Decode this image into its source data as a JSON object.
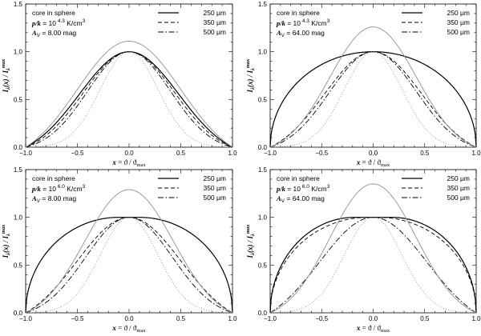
{
  "chart_data": [
    {
      "type": "line",
      "panel": "top-left",
      "title": "core in sphere",
      "pressure_text": "p/k = 10^4.3 K/cm^3",
      "pressure_exp": "4.3",
      "av_text": "A_V = 8.00 mag",
      "av_value": "8.00",
      "xlabel": "x = ϑ / ϑ_max",
      "ylabel": "I_λ(x) / I_λ^max",
      "xlim": [
        -1.0,
        1.0
      ],
      "ylim": [
        0.0,
        1.5
      ],
      "xticks": [
        "-1.0",
        "-0.5",
        "0.0",
        "0.5",
        "1.0"
      ],
      "yticks": [
        "0.0",
        "0.5",
        "1.0",
        "1.5"
      ],
      "legend_position": "top-right",
      "series": [
        {
          "name": "250 μm",
          "style": "solid",
          "peak": 1.0,
          "flat": 0.0,
          "sigma": 0.48,
          "edge": 0.0
        },
        {
          "name": "350 μm",
          "style": "dashed",
          "peak": 1.0,
          "flat": 0.0,
          "sigma": 0.44,
          "edge": 0.0
        },
        {
          "name": "500 μm",
          "style": "dashdot",
          "peak": 1.0,
          "flat": 0.0,
          "sigma": 0.4,
          "edge": 0.0
        },
        {
          "name": "thin reference",
          "style": "thin-solid",
          "peak": 1.11,
          "flat": 0.0,
          "sigma": 0.5,
          "edge": 0.0
        },
        {
          "name": "dotted reference",
          "style": "dotted",
          "peak": 1.0,
          "flat": 0.0,
          "sigma": 0.28,
          "edge": 0.0
        }
      ]
    },
    {
      "type": "line",
      "panel": "top-right",
      "title": "core in sphere",
      "pressure_text": "p/k = 10^4.3 K/cm^3",
      "pressure_exp": "4.3",
      "av_text": "A_V = 64.00 mag",
      "av_value": "64.00",
      "xlabel": "x = ϑ / ϑ_max",
      "ylabel": "I_λ(x) / I_λ^max",
      "xlim": [
        -1.0,
        1.0
      ],
      "ylim": [
        0.0,
        1.5
      ],
      "xticks": [
        "-1.0",
        "-0.5",
        "0.0",
        "0.5",
        "1.0"
      ],
      "yticks": [
        "0.0",
        "0.5",
        "1.0",
        "1.5"
      ],
      "legend_position": "top-right",
      "series": [
        {
          "name": "250 μm",
          "style": "solid",
          "peak": 1.0,
          "flat": 0.0,
          "sigma": 0.0,
          "edge": 0.0
        },
        {
          "name": "350 μm",
          "style": "dashed",
          "peak": 1.0,
          "flat": 0.0,
          "sigma": 0.47,
          "edge": 0.0
        },
        {
          "name": "500 μm",
          "style": "dashdot",
          "peak": 1.0,
          "flat": 0.0,
          "sigma": 0.42,
          "edge": 0.0
        },
        {
          "name": "thin reference",
          "style": "thin-solid",
          "peak": 1.26,
          "flat": 0.0,
          "sigma": 0.42,
          "edge": 0.0
        },
        {
          "name": "dotted reference",
          "style": "dotted",
          "peak": 1.0,
          "flat": 0.0,
          "sigma": 0.28,
          "edge": 0.0
        }
      ]
    },
    {
      "type": "line",
      "panel": "bottom-left",
      "title": "core in sphere",
      "pressure_text": "p/k = 10^6.0 K/cm^3",
      "pressure_exp": "6.0",
      "av_text": "A_V = 8.00 mag",
      "av_value": "8.00",
      "xlabel": "x = ϑ / ϑ_max",
      "ylabel": "I_λ(x) / I_λ^max",
      "xlim": [
        -1.0,
        1.0
      ],
      "ylim": [
        0.0,
        1.5
      ],
      "xticks": [
        "-1.0",
        "-0.5",
        "0.0",
        "0.5",
        "1.0"
      ],
      "yticks": [
        "0.0",
        "0.5",
        "1.0",
        "1.5"
      ],
      "legend_position": "top-right",
      "series": [
        {
          "name": "250 μm",
          "style": "solid",
          "peak": 1.0,
          "flat": 0.1,
          "sigma": 0.0,
          "edge": 0.0
        },
        {
          "name": "350 μm",
          "style": "dashed",
          "peak": 1.0,
          "flat": 0.0,
          "sigma": 0.5,
          "edge": 0.0
        },
        {
          "name": "500 μm",
          "style": "dashdot",
          "peak": 1.0,
          "flat": 0.0,
          "sigma": 0.42,
          "edge": 0.0
        },
        {
          "name": "thin reference",
          "style": "thin-solid",
          "peak": 1.29,
          "flat": 0.0,
          "sigma": 0.43,
          "edge": 0.0
        },
        {
          "name": "dotted reference",
          "style": "dotted",
          "peak": 1.0,
          "flat": 0.0,
          "sigma": 0.28,
          "edge": 0.0
        }
      ]
    },
    {
      "type": "line",
      "panel": "bottom-right",
      "title": "core in sphere",
      "pressure_text": "p/k = 10^6.0 K/cm^3",
      "pressure_exp": "6.0",
      "av_text": "A_V = 64.00 mag",
      "av_value": "64.00",
      "xlabel": "x = ϑ / ϑ_max",
      "ylabel": "I_λ(x) / I_λ^max",
      "xlim": [
        -1.0,
        1.0
      ],
      "ylim": [
        0.0,
        1.5
      ],
      "xticks": [
        "-1.0",
        "-0.5",
        "0.0",
        "0.5",
        "1.0"
      ],
      "yticks": [
        "0.0",
        "0.5",
        "1.0",
        "1.5"
      ],
      "legend_position": "top-right",
      "series": [
        {
          "name": "250 μm",
          "style": "solid",
          "peak": 1.0,
          "flat": 0.18,
          "sigma": 0.0,
          "edge": 0.0
        },
        {
          "name": "350 μm",
          "style": "dashed",
          "peak": 1.0,
          "flat": 0.05,
          "sigma": 0.0,
          "edge": 0.0
        },
        {
          "name": "500 μm",
          "style": "dashdot",
          "peak": 1.0,
          "flat": 0.0,
          "sigma": 0.52,
          "edge": 0.0
        },
        {
          "name": "thin reference",
          "style": "thin-solid",
          "peak": 1.35,
          "flat": 0.0,
          "sigma": 0.42,
          "edge": 0.0
        },
        {
          "name": "dotted reference",
          "style": "dotted",
          "peak": 1.0,
          "flat": 0.0,
          "sigma": 0.28,
          "edge": 0.0
        }
      ]
    }
  ]
}
